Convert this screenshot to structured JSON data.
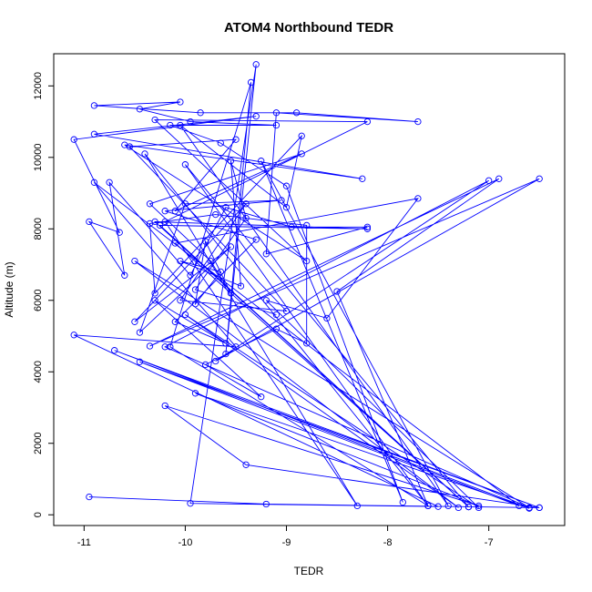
{
  "chart_data": {
    "type": "line",
    "title": "ATOM4 Northbound TEDR",
    "xlabel": "TEDR",
    "ylabel": "Altitude (m)",
    "xlim": [
      -11.3,
      -6.25
    ],
    "ylim": [
      -300,
      12900
    ],
    "x_ticks": [
      -11,
      -10,
      -9,
      -8,
      -7
    ],
    "y_ticks": [
      0,
      2000,
      4000,
      6000,
      8000,
      10000,
      12000
    ],
    "grid": false,
    "line_color": "#0000ff",
    "marker": "open-circle",
    "series": [
      {
        "points": [
          [
            -10.95,
            500
          ],
          [
            -9.2,
            300
          ],
          [
            -6.5,
            200
          ],
          [
            -9.4,
            1400
          ],
          [
            -10.2,
            3050
          ],
          [
            -7.1,
            250
          ],
          [
            -9.9,
            3400
          ],
          [
            -6.6,
            180
          ],
          [
            -10.7,
            4600
          ],
          [
            -6.5,
            200
          ],
          [
            -10.45,
            4280
          ],
          [
            -6.7,
            250
          ],
          [
            -10.9,
            9300
          ],
          [
            -9.5,
            4700
          ],
          [
            -11.1,
            5030
          ],
          [
            -7.5,
            230
          ],
          [
            -9.95,
            320
          ],
          [
            -9.3,
            12600
          ],
          [
            -9.6,
            4500
          ],
          [
            -9.35,
            12100
          ],
          [
            -10.15,
            4700
          ],
          [
            -7.6,
            250
          ],
          [
            -8.5,
            6250
          ],
          [
            -6.9,
            9400
          ],
          [
            -10.35,
            4720
          ],
          [
            -6.5,
            9400
          ],
          [
            -9.7,
            4300
          ],
          [
            -7.0,
            9350
          ],
          [
            -10.2,
            4700
          ],
          [
            -6.6,
            200
          ],
          [
            -10.5,
            7100
          ],
          [
            -7.3,
            200
          ],
          [
            -10.0,
            5600
          ],
          [
            -7.1,
            200
          ],
          [
            -9.2,
            6000
          ],
          [
            -8.6,
            5500
          ],
          [
            -7.7,
            8850
          ],
          [
            -10.1,
            7600
          ],
          [
            -7.2,
            220
          ],
          [
            -10.3,
            8200
          ],
          [
            -8.2,
            8000
          ],
          [
            -10.25,
            8100
          ],
          [
            -7.2,
            220
          ],
          [
            -10.0,
            9800
          ],
          [
            -7.6,
            250
          ],
          [
            -10.4,
            10100
          ],
          [
            -8.3,
            250
          ],
          [
            -10.2,
            8200
          ],
          [
            -8.2,
            11000
          ],
          [
            -10.3,
            11050
          ],
          [
            -8.8,
            7100
          ],
          [
            -10.6,
            10350
          ],
          [
            -8.25,
            9400
          ],
          [
            -10.9,
            10650
          ],
          [
            -9.3,
            11150
          ],
          [
            -11.1,
            10500
          ],
          [
            -10.65,
            7900
          ],
          [
            -10.95,
            8200
          ],
          [
            -10.6,
            6700
          ],
          [
            -10.75,
            9300
          ],
          [
            -9.95,
            6700
          ],
          [
            -9.6,
            8600
          ],
          [
            -8.95,
            8050
          ],
          [
            -8.2,
            8050
          ],
          [
            -9.2,
            7300
          ],
          [
            -9.1,
            11250
          ],
          [
            -7.7,
            11000
          ],
          [
            -8.9,
            11250
          ],
          [
            -9.85,
            11250
          ],
          [
            -10.9,
            11450
          ],
          [
            -10.05,
            11550
          ],
          [
            -10.45,
            11350
          ],
          [
            -9.95,
            11000
          ],
          [
            -9.1,
            10900
          ],
          [
            -10.15,
            10900
          ],
          [
            -9.65,
            10400
          ],
          [
            -9.0,
            9200
          ],
          [
            -7.85,
            350
          ],
          [
            -9.25,
            9900
          ],
          [
            -7.4,
            250
          ],
          [
            -10.05,
            10900
          ],
          [
            -9.0,
            8600
          ],
          [
            -8.85,
            10600
          ],
          [
            -10.3,
            6200
          ],
          [
            -10.35,
            8150
          ],
          [
            -9.7,
            8400
          ],
          [
            -8.8,
            8100
          ],
          [
            -8.8,
            4800
          ],
          [
            -9.1,
            5200
          ],
          [
            -9.8,
            4200
          ],
          [
            -9.25,
            3300
          ],
          [
            -10.3,
            6000
          ],
          [
            -9.6,
            4800
          ],
          [
            -10.1,
            5400
          ],
          [
            -9.3,
            7700
          ],
          [
            -10.2,
            8500
          ],
          [
            -9.05,
            8800
          ],
          [
            -10.0,
            8700
          ],
          [
            -10.45,
            5100
          ],
          [
            -9.55,
            7500
          ],
          [
            -10.5,
            5400
          ],
          [
            -9.4,
            8700
          ],
          [
            -10.05,
            6000
          ],
          [
            -9.0,
            5700
          ],
          [
            -10.55,
            10300
          ],
          [
            -9.5,
            10500
          ],
          [
            -10.1,
            8500
          ],
          [
            -8.85,
            10100
          ],
          [
            -10.35,
            8700
          ],
          [
            -9.75,
            7100
          ],
          [
            -9.55,
            6200
          ],
          [
            -9.8,
            7650
          ],
          [
            -9.9,
            5900
          ],
          [
            -9.65,
            6800
          ],
          [
            -10.05,
            7100
          ],
          [
            -9.45,
            6400
          ],
          [
            -9.55,
            9900
          ],
          [
            -9.4,
            8300
          ],
          [
            -9.9,
            6300
          ],
          [
            -9.1,
            5600
          ]
        ]
      }
    ]
  }
}
